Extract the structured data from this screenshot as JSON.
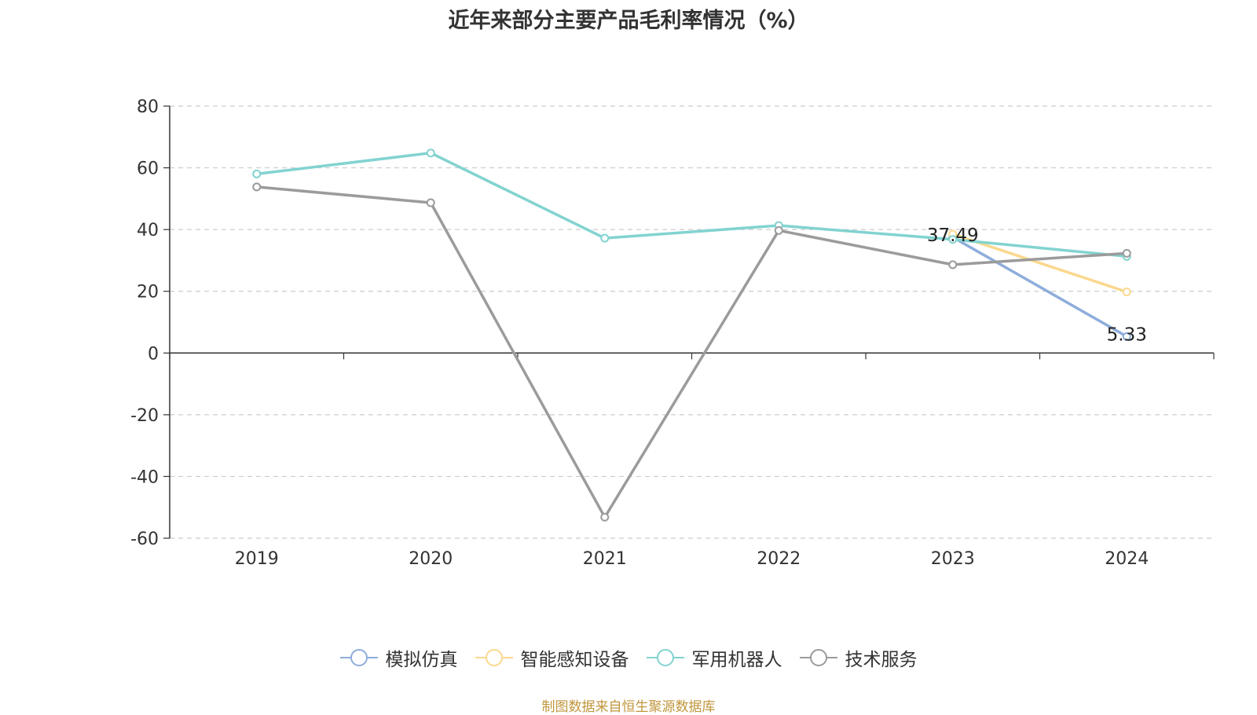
{
  "chart_data": {
    "type": "line",
    "title": "近年来部分主要产品毛利率情况（%）",
    "categories": [
      "2019",
      "2020",
      "2021",
      "2022",
      "2023",
      "2024"
    ],
    "ylim": [
      -60,
      80
    ],
    "yticks": [
      80,
      60,
      40,
      20,
      0,
      -20,
      -40,
      -60
    ],
    "grid": true,
    "legend_position": "bottom",
    "series": [
      {
        "name": "模拟仿真",
        "color": "#8eaddb",
        "values": [
          null,
          null,
          null,
          null,
          37.49,
          5.33
        ]
      },
      {
        "name": "智能感知设备",
        "color": "#fbd88e",
        "values": [
          null,
          null,
          null,
          null,
          38.5,
          19.8
        ]
      },
      {
        "name": "军用机器人",
        "color": "#82d3d0",
        "values": [
          58.0,
          64.8,
          37.2,
          41.3,
          36.8,
          31.3
        ]
      },
      {
        "name": "技术服务",
        "color": "#9b9b9b",
        "values": [
          53.8,
          48.7,
          -53.2,
          39.7,
          28.6,
          32.3
        ]
      }
    ],
    "data_labels": [
      {
        "series": "模拟仿真",
        "category": "2023",
        "text": "37.49"
      },
      {
        "series": "模拟仿真",
        "category": "2024",
        "text": "5.33"
      }
    ]
  },
  "source_note": "制图数据来自恒生聚源数据库"
}
